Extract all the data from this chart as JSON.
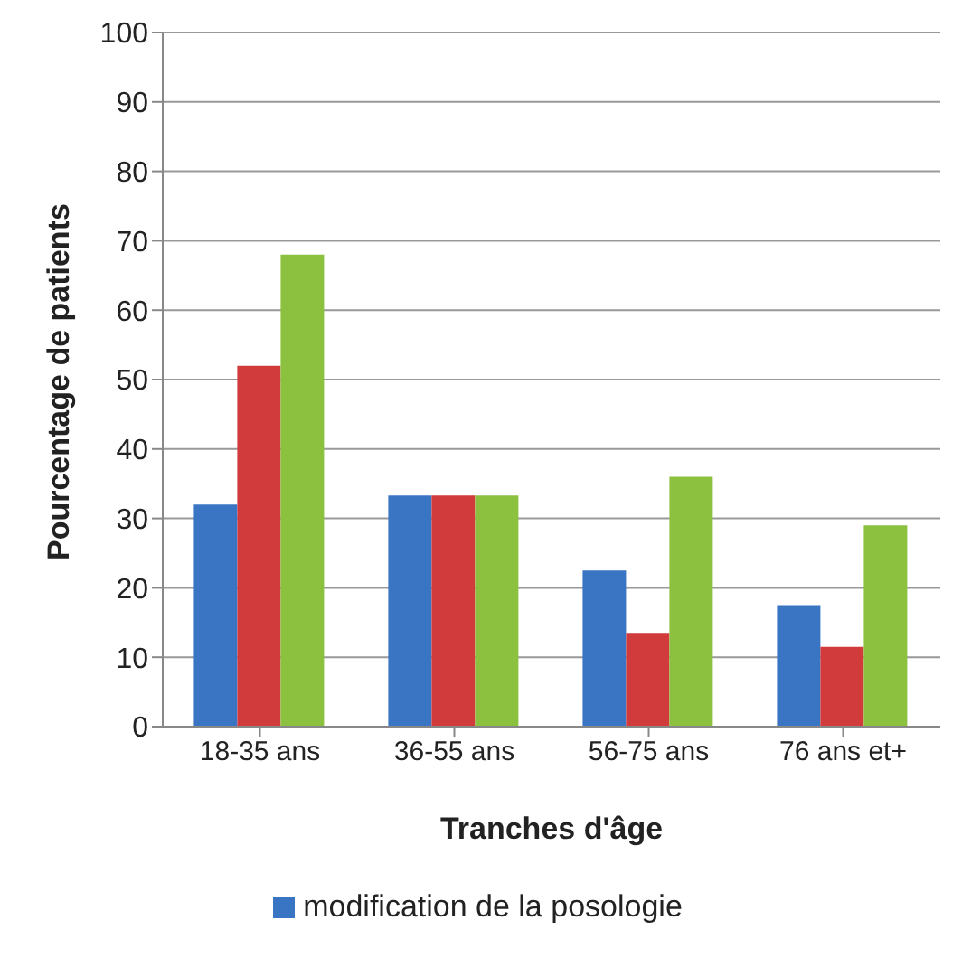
{
  "chart_data": {
    "type": "bar",
    "xlabel": "Tranches d'âge",
    "ylabel": "Pourcentage de patients",
    "categories": [
      "18-35 ans",
      "36-55 ans",
      "56-75 ans",
      "76 ans et+"
    ],
    "series": [
      {
        "name": "modification de la posologie",
        "color": "#3a75c4",
        "values": [
          32,
          33.3,
          22.5,
          17.5
        ]
      },
      {
        "color": "#d13b3b",
        "values": [
          52,
          33.3,
          13.5,
          11.5
        ]
      },
      {
        "color": "#8cc140",
        "values": [
          68,
          33.3,
          36,
          29
        ]
      }
    ],
    "ylim": [
      0,
      100
    ],
    "yticks": [
      0,
      10,
      20,
      30,
      40,
      50,
      60,
      70,
      80,
      90,
      100
    ],
    "grid": "y",
    "legend": "bottom"
  }
}
